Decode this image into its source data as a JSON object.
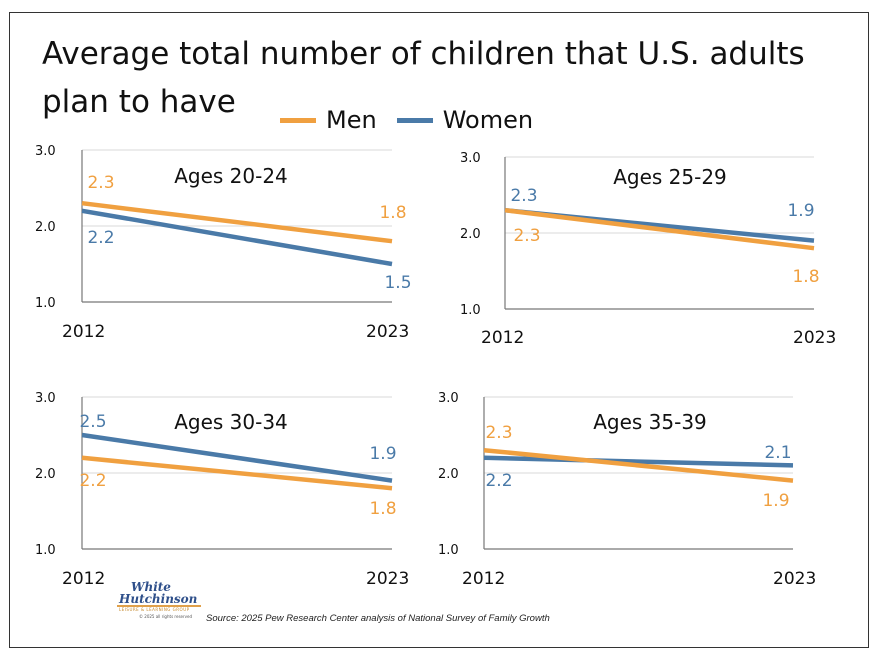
{
  "title": "Average total number of children that U.S. adults plan to have",
  "legend": {
    "items": [
      {
        "label": "Men",
        "color": "#f0a040"
      },
      {
        "label": "Women",
        "color": "#4a7aa8"
      }
    ]
  },
  "chart_data": [
    {
      "type": "line",
      "title": "Ages 20-24",
      "categories": [
        "2012",
        "2023"
      ],
      "series": [
        {
          "name": "Men",
          "values": [
            2.3,
            1.8
          ],
          "labels": [
            "2.3",
            "1.8"
          ]
        },
        {
          "name": "Women",
          "values": [
            2.2,
            1.5
          ],
          "labels": [
            "2.2",
            "1.5"
          ]
        }
      ],
      "yticks": [
        "1.0",
        "2.0",
        "3.0"
      ],
      "ylim": [
        1.0,
        3.0
      ]
    },
    {
      "type": "line",
      "title": "Ages 25-29",
      "categories": [
        "2012",
        "2023"
      ],
      "series": [
        {
          "name": "Men",
          "values": [
            2.3,
            1.8
          ],
          "labels": [
            "2.3",
            "1.8"
          ]
        },
        {
          "name": "Women",
          "values": [
            2.3,
            1.9
          ],
          "labels": [
            "2.3",
            "1.9"
          ]
        }
      ],
      "yticks": [
        "1.0",
        "2.0",
        "3.0"
      ],
      "ylim": [
        1.0,
        3.0
      ]
    },
    {
      "type": "line",
      "title": "Ages 30-34",
      "categories": [
        "2012",
        "2023"
      ],
      "series": [
        {
          "name": "Men",
          "values": [
            2.2,
            1.8
          ],
          "labels": [
            "2.2",
            "1.8"
          ]
        },
        {
          "name": "Women",
          "values": [
            2.5,
            1.9
          ],
          "labels": [
            "2.5",
            "1.9"
          ]
        }
      ],
      "yticks": [
        "1.0",
        "2.0",
        "3.0"
      ],
      "ylim": [
        1.0,
        3.0
      ]
    },
    {
      "type": "line",
      "title": "Ages 35-39",
      "categories": [
        "2012",
        "2023"
      ],
      "series": [
        {
          "name": "Men",
          "values": [
            2.3,
            1.9
          ],
          "labels": [
            "2.3",
            "1.9"
          ]
        },
        {
          "name": "Women",
          "values": [
            2.2,
            2.1
          ],
          "labels": [
            "2.2",
            "2.1"
          ]
        }
      ],
      "yticks": [
        "1.0",
        "2.0",
        "3.0"
      ],
      "ylim": [
        1.0,
        3.0
      ]
    }
  ],
  "logo": {
    "line1": "White",
    "line2": "Hutchinson",
    "line3": "LEISURE & LEARNING GROUP",
    "line4": "© 2025 all rights reserved"
  },
  "source": "Source: 2025  Pew Research Center analysis of National Survey of Family Growth"
}
